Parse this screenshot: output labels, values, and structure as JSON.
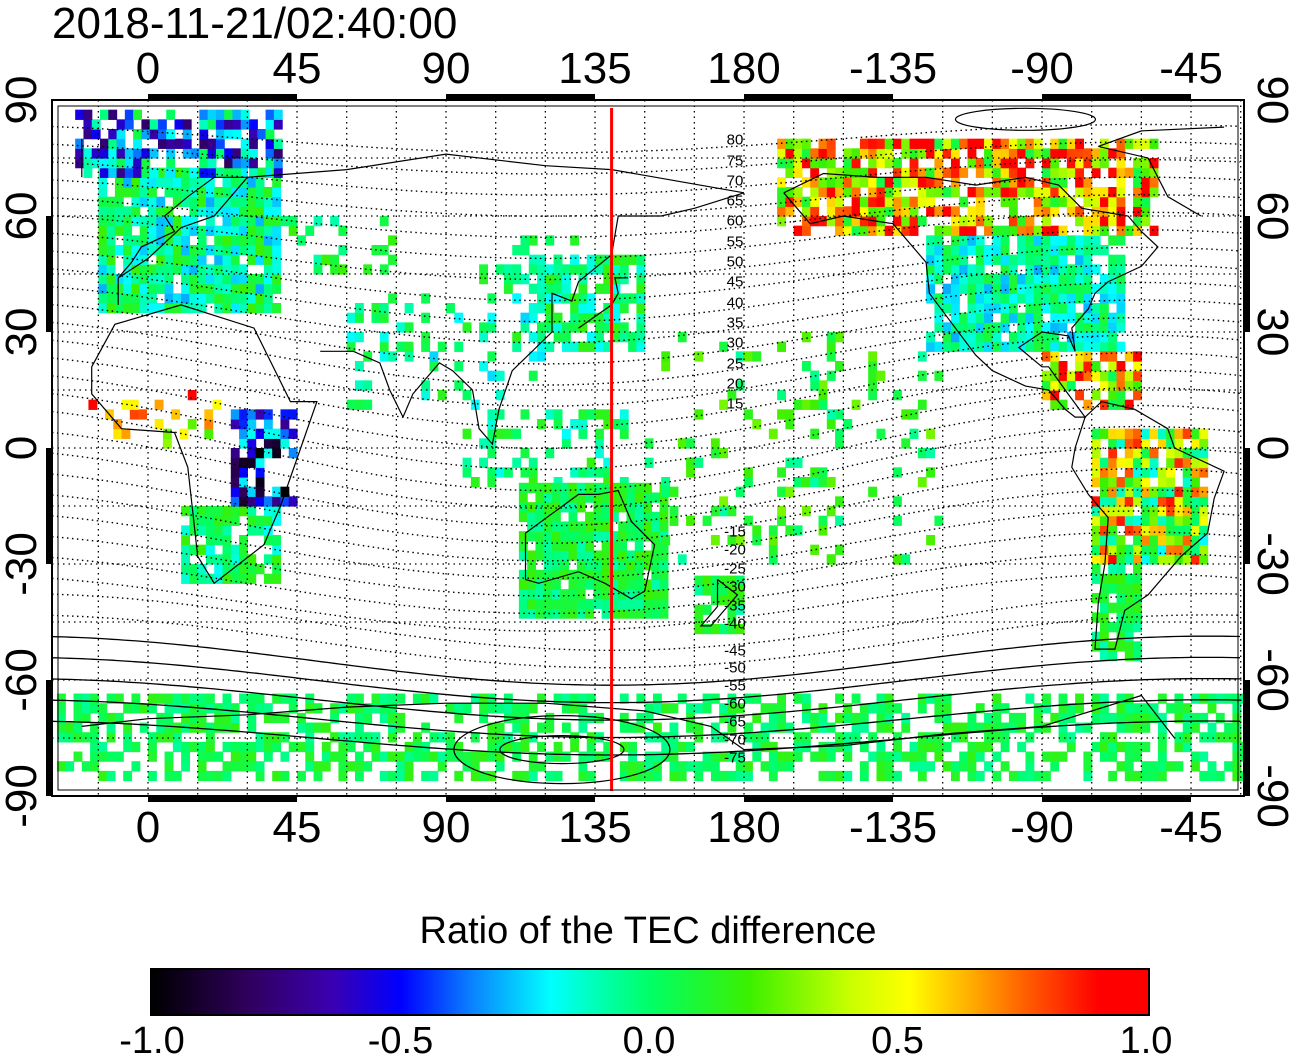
{
  "title": "2018-11-21/02:40:00",
  "map": {
    "lon_ticks": [
      "0",
      "45",
      "90",
      "135",
      "180",
      "-135",
      "-90",
      "-45"
    ],
    "lat_ticks": [
      "90",
      "60",
      "30",
      "0",
      "-30",
      "-60",
      "-90"
    ],
    "magnetic_latitude_labels": [
      "80",
      "75",
      "70",
      "65",
      "60",
      "55",
      "50",
      "45",
      "40",
      "35",
      "30",
      "25",
      "20",
      "15",
      "-15",
      "-20",
      "-25",
      "-30",
      "-35",
      "-40",
      "-45",
      "-50",
      "-55",
      "-60",
      "-65",
      "-70",
      "-75"
    ],
    "terminator_longitude": 140,
    "terminator_color": "#ff0000"
  },
  "colorbar": {
    "title": "Ratio of the TEC difference",
    "ticks": [
      "-1.0",
      "-0.5",
      "0.0",
      "0.5",
      "1.0"
    ],
    "range": [
      -1.0,
      1.0
    ]
  }
}
